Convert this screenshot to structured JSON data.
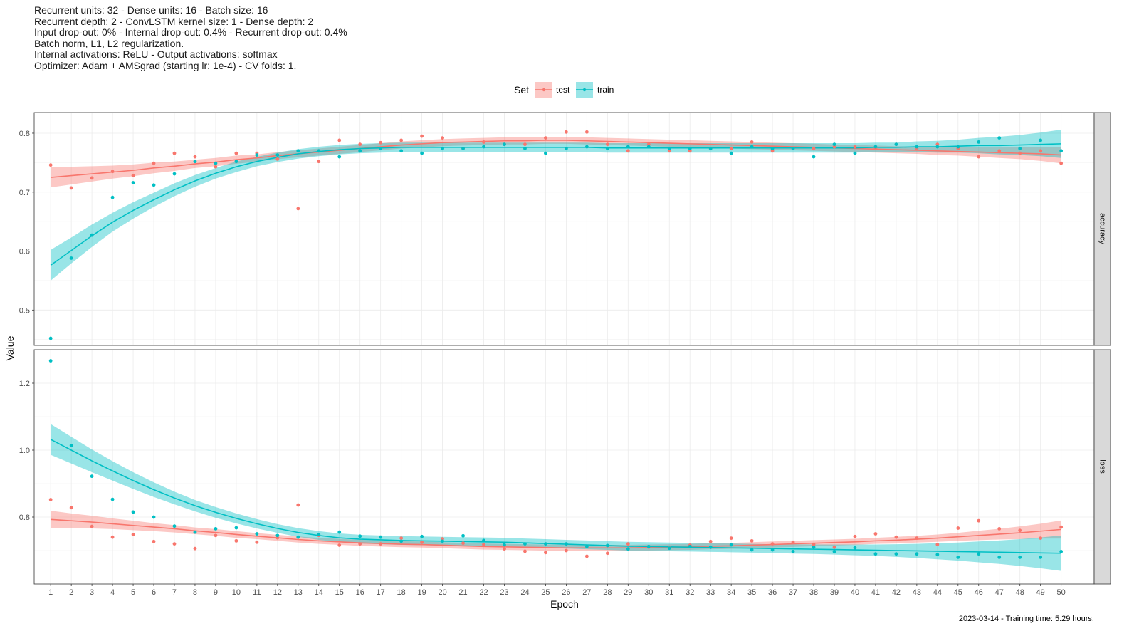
{
  "subtitle_lines": [
    "Recurrent units: 32 - Dense units: 16 - Batch size: 16",
    "Recurrent depth: 2 - ConvLSTM kernel size: 1 - Dense depth: 2",
    "Input drop-out: 0% - Internal drop-out: 0.4% - Recurrent drop-out: 0.4%",
    "Batch norm, L1, L2 regularization.",
    "Internal activations: ReLU - Output activations: softmax",
    "Optimizer: Adam + AMSgrad (starting lr: 1e-4) - CV folds: 1."
  ],
  "caption": "2023-03-14 - Training time: 5.29 hours.",
  "chart_data": {
    "type": "scatter",
    "subtype": "faceted scatter with loess smooth and confidence band",
    "xlabel": "Epoch",
    "ylabel": "Value",
    "legend": {
      "title": "Set",
      "position": "top",
      "entries": [
        "test",
        "train"
      ]
    },
    "colors": {
      "test": "#F8766D",
      "train": "#00BFC4",
      "test_band": "#F8766D",
      "train_band": "#00BFC4",
      "strip_bg": "#d9d9d9"
    },
    "grid": true,
    "x_ticks": [
      1,
      2,
      3,
      4,
      5,
      6,
      7,
      8,
      9,
      10,
      11,
      12,
      13,
      14,
      15,
      16,
      17,
      18,
      19,
      20,
      21,
      22,
      23,
      24,
      25,
      26,
      27,
      28,
      29,
      30,
      31,
      32,
      33,
      34,
      35,
      36,
      37,
      38,
      39,
      40,
      41,
      42,
      43,
      44,
      45,
      46,
      47,
      48,
      49,
      50
    ],
    "xlim": [
      0.2,
      51.6
    ],
    "panels": [
      {
        "strip_label": "accuracy",
        "ylim": [
          0.44,
          0.835
        ],
        "y_ticks": [
          0.5,
          0.6,
          0.7,
          0.8
        ],
        "y_tick_labels": [
          "0.5",
          "0.6",
          "0.7",
          "0.8"
        ],
        "series": [
          {
            "name": "test",
            "points": [
              0.746,
              0.707,
              0.724,
              0.735,
              0.728,
              0.749,
              0.766,
              0.76,
              0.743,
              0.766,
              0.766,
              0.756,
              0.672,
              0.752,
              0.788,
              0.781,
              0.784,
              0.788,
              0.795,
              0.792,
              0.774,
              0.785,
              0.781,
              0.781,
              0.792,
              0.802,
              0.802,
              0.781,
              0.77,
              0.781,
              0.77,
              0.77,
              0.774,
              0.774,
              0.785,
              0.77,
              0.774,
              0.774,
              0.777,
              0.777,
              0.774,
              0.781,
              0.774,
              0.781,
              0.774,
              0.76,
              0.77,
              0.766,
              0.77,
              0.749
            ],
            "smooth": [
              0.725,
              0.728,
              0.731,
              0.734,
              0.737,
              0.741,
              0.744,
              0.748,
              0.751,
              0.755,
              0.758,
              0.762,
              0.765,
              0.768,
              0.771,
              0.774,
              0.777,
              0.78,
              0.782,
              0.784,
              0.785,
              0.786,
              0.787,
              0.787,
              0.788,
              0.788,
              0.787,
              0.786,
              0.785,
              0.784,
              0.783,
              0.782,
              0.781,
              0.78,
              0.779,
              0.778,
              0.777,
              0.776,
              0.775,
              0.774,
              0.773,
              0.772,
              0.771,
              0.77,
              0.769,
              0.768,
              0.767,
              0.766,
              0.765,
              0.763
            ],
            "band_half_width": [
              0.017,
              0.015,
              0.013,
              0.011,
              0.01,
              0.009,
              0.008,
              0.007,
              0.007,
              0.007,
              0.006,
              0.006,
              0.006,
              0.006,
              0.006,
              0.006,
              0.006,
              0.006,
              0.006,
              0.006,
              0.006,
              0.006,
              0.006,
              0.006,
              0.006,
              0.006,
              0.006,
              0.006,
              0.006,
              0.006,
              0.006,
              0.006,
              0.006,
              0.006,
              0.006,
              0.006,
              0.006,
              0.006,
              0.006,
              0.006,
              0.006,
              0.006,
              0.006,
              0.007,
              0.007,
              0.008,
              0.009,
              0.01,
              0.012,
              0.014
            ]
          },
          {
            "name": "train",
            "points": [
              0.452,
              0.588,
              0.627,
              0.691,
              0.716,
              0.712,
              0.731,
              0.752,
              0.749,
              0.752,
              0.763,
              0.763,
              0.77,
              0.77,
              0.76,
              0.77,
              0.774,
              0.77,
              0.766,
              0.774,
              0.774,
              0.777,
              0.781,
              0.774,
              0.766,
              0.774,
              0.777,
              0.774,
              0.777,
              0.777,
              0.774,
              0.774,
              0.774,
              0.766,
              0.777,
              0.774,
              0.774,
              0.76,
              0.781,
              0.766,
              0.777,
              0.781,
              0.777,
              0.777,
              0.777,
              0.785,
              0.792,
              0.774,
              0.788,
              0.77
            ],
            "smooth": [
              0.576,
              0.601,
              0.626,
              0.649,
              0.669,
              0.687,
              0.704,
              0.719,
              0.732,
              0.743,
              0.752,
              0.759,
              0.765,
              0.769,
              0.772,
              0.774,
              0.775,
              0.776,
              0.776,
              0.776,
              0.776,
              0.776,
              0.776,
              0.776,
              0.776,
              0.776,
              0.776,
              0.775,
              0.775,
              0.775,
              0.775,
              0.775,
              0.775,
              0.775,
              0.775,
              0.775,
              0.775,
              0.775,
              0.775,
              0.775,
              0.776,
              0.776,
              0.777,
              0.777,
              0.778,
              0.779,
              0.779,
              0.78,
              0.781,
              0.782
            ],
            "band_half_width": [
              0.026,
              0.022,
              0.019,
              0.016,
              0.014,
              0.012,
              0.011,
              0.01,
              0.009,
              0.009,
              0.008,
              0.008,
              0.008,
              0.008,
              0.008,
              0.008,
              0.008,
              0.008,
              0.008,
              0.008,
              0.008,
              0.008,
              0.008,
              0.008,
              0.008,
              0.008,
              0.008,
              0.008,
              0.008,
              0.008,
              0.008,
              0.008,
              0.008,
              0.008,
              0.008,
              0.008,
              0.008,
              0.008,
              0.008,
              0.008,
              0.008,
              0.008,
              0.009,
              0.01,
              0.011,
              0.013,
              0.015,
              0.017,
              0.02,
              0.024
            ]
          }
        ]
      },
      {
        "strip_label": "loss",
        "ylim": [
          0.6,
          1.3
        ],
        "y_ticks": [
          0.8,
          1.0,
          1.2
        ],
        "y_tick_labels": [
          "0.8",
          "1.0",
          "1.2"
        ],
        "series": [
          {
            "name": "test",
            "points": [
              0.852,
              0.828,
              0.772,
              0.74,
              0.748,
              0.727,
              0.72,
              0.706,
              0.745,
              0.729,
              0.725,
              0.738,
              0.836,
              0.745,
              0.716,
              0.72,
              0.72,
              0.737,
              0.725,
              0.735,
              0.722,
              0.718,
              0.705,
              0.698,
              0.694,
              0.7,
              0.683,
              0.692,
              0.72,
              0.71,
              0.708,
              0.716,
              0.727,
              0.737,
              0.729,
              0.72,
              0.725,
              0.718,
              0.71,
              0.742,
              0.75,
              0.74,
              0.737,
              0.718,
              0.767,
              0.789,
              0.765,
              0.76,
              0.737,
              0.77
            ],
            "smooth": [
              0.793,
              0.789,
              0.785,
              0.78,
              0.775,
              0.77,
              0.765,
              0.759,
              0.754,
              0.748,
              0.743,
              0.738,
              0.733,
              0.729,
              0.726,
              0.723,
              0.721,
              0.719,
              0.718,
              0.716,
              0.714,
              0.712,
              0.711,
              0.71,
              0.709,
              0.708,
              0.708,
              0.708,
              0.708,
              0.709,
              0.71,
              0.711,
              0.713,
              0.714,
              0.716,
              0.718,
              0.72,
              0.722,
              0.724,
              0.726,
              0.729,
              0.731,
              0.734,
              0.737,
              0.741,
              0.745,
              0.749,
              0.753,
              0.758,
              0.763
            ],
            "band_half_width": [
              0.026,
              0.022,
              0.019,
              0.016,
              0.014,
              0.012,
              0.011,
              0.01,
              0.01,
              0.01,
              0.009,
              0.009,
              0.009,
              0.009,
              0.009,
              0.009,
              0.009,
              0.009,
              0.009,
              0.009,
              0.009,
              0.009,
              0.009,
              0.009,
              0.009,
              0.009,
              0.009,
              0.009,
              0.009,
              0.009,
              0.009,
              0.009,
              0.009,
              0.009,
              0.009,
              0.009,
              0.009,
              0.009,
              0.009,
              0.009,
              0.009,
              0.01,
              0.01,
              0.011,
              0.012,
              0.014,
              0.016,
              0.019,
              0.022,
              0.027
            ]
          },
          {
            "name": "train",
            "points": [
              1.267,
              1.014,
              0.922,
              0.853,
              0.815,
              0.8,
              0.773,
              0.755,
              0.765,
              0.768,
              0.75,
              0.745,
              0.74,
              0.748,
              0.755,
              0.743,
              0.74,
              0.728,
              0.742,
              0.728,
              0.744,
              0.73,
              0.717,
              0.72,
              0.72,
              0.72,
              0.712,
              0.715,
              0.705,
              0.712,
              0.707,
              0.712,
              0.71,
              0.717,
              0.702,
              0.702,
              0.697,
              0.71,
              0.697,
              0.708,
              0.69,
              0.69,
              0.69,
              0.688,
              0.68,
              0.69,
              0.68,
              0.68,
              0.68,
              0.697
            ],
            "smooth": [
              1.032,
              1.0,
              0.968,
              0.938,
              0.909,
              0.882,
              0.857,
              0.834,
              0.814,
              0.796,
              0.78,
              0.766,
              0.754,
              0.745,
              0.738,
              0.734,
              0.732,
              0.73,
              0.729,
              0.728,
              0.727,
              0.726,
              0.725,
              0.723,
              0.721,
              0.719,
              0.717,
              0.715,
              0.713,
              0.712,
              0.711,
              0.71,
              0.709,
              0.708,
              0.707,
              0.706,
              0.705,
              0.704,
              0.703,
              0.702,
              0.701,
              0.7,
              0.699,
              0.698,
              0.697,
              0.696,
              0.695,
              0.694,
              0.693,
              0.692
            ],
            "band_half_width": [
              0.046,
              0.04,
              0.034,
              0.029,
              0.025,
              0.022,
              0.019,
              0.017,
              0.016,
              0.015,
              0.014,
              0.013,
              0.013,
              0.013,
              0.013,
              0.013,
              0.013,
              0.013,
              0.013,
              0.013,
              0.013,
              0.013,
              0.013,
              0.013,
              0.013,
              0.013,
              0.013,
              0.013,
              0.013,
              0.013,
              0.013,
              0.013,
              0.013,
              0.013,
              0.013,
              0.013,
              0.014,
              0.014,
              0.015,
              0.016,
              0.017,
              0.019,
              0.021,
              0.024,
              0.027,
              0.031,
              0.035,
              0.04,
              0.046,
              0.053
            ]
          }
        ]
      }
    ]
  }
}
